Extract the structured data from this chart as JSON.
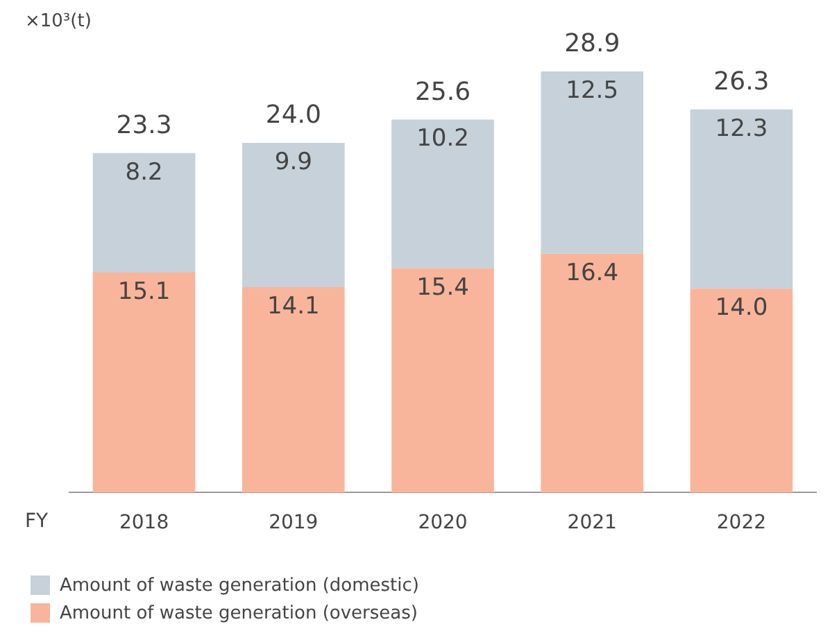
{
  "chart_data": {
    "type": "bar",
    "ylabel": "×10³(t)",
    "xlabel": "FY",
    "categories": [
      "2018",
      "2019",
      "2020",
      "2021",
      "2022"
    ],
    "stacked": true,
    "legend": "bottom",
    "grid": false,
    "series": [
      {
        "name": "Amount of waste generation (overseas)",
        "color": "#f9b59b",
        "values": [
          15.1,
          14.1,
          15.4,
          16.4,
          14.0
        ],
        "value_labels": [
          "15.1",
          "14.1",
          "15.4",
          "16.4",
          "14.0"
        ]
      },
      {
        "name": "Amount of waste generation (domestic)",
        "color": "#c6d1d9",
        "values": [
          8.2,
          9.9,
          10.2,
          12.5,
          12.3
        ],
        "value_labels": [
          "8.2",
          "9.9",
          "10.2",
          "12.5",
          "12.3"
        ]
      }
    ],
    "totals": [
      "23.3",
      "24.0",
      "25.6",
      "28.9",
      "26.3"
    ]
  }
}
